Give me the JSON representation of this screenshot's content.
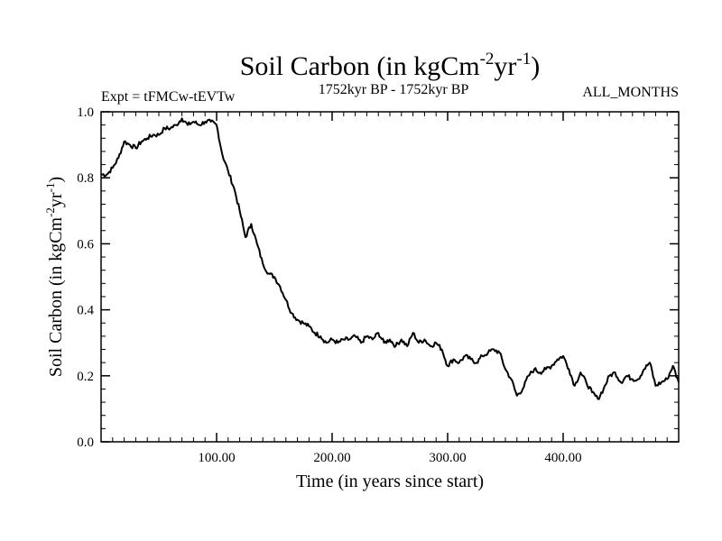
{
  "chart_data": {
    "type": "line",
    "title_main": "Soil Carbon (in kgCm",
    "title_sup1": "-2",
    "title_mid": "yr",
    "title_sup2": "-1",
    "title_end": ")",
    "subtitle_left": "Expt = tFMCw-tEVTw",
    "subtitle_center": "1752kyr BP - 1752kyr BP",
    "subtitle_right": "ALL_MONTHS",
    "xlabel": "Time (in years since start)",
    "ylabel_main": "Soil Carbon (in kgCm",
    "ylabel_sup1": "-2",
    "ylabel_mid": "yr",
    "ylabel_sup2": "-1",
    "ylabel_end": ")",
    "xlim": [
      0,
      500
    ],
    "ylim": [
      0,
      1.0
    ],
    "x_ticks": [
      {
        "value": 100,
        "label": "100.00"
      },
      {
        "value": 200,
        "label": "200.00"
      },
      {
        "value": 300,
        "label": "300.00"
      },
      {
        "value": 400,
        "label": "400.00"
      }
    ],
    "y_ticks": [
      {
        "value": 0.0,
        "label": "0.0"
      },
      {
        "value": 0.2,
        "label": "0.2"
      },
      {
        "value": 0.4,
        "label": "0.4"
      },
      {
        "value": 0.6,
        "label": "0.6"
      },
      {
        "value": 0.8,
        "label": "0.8"
      },
      {
        "value": 1.0,
        "label": "1.0"
      }
    ],
    "series": [
      {
        "name": "Soil Carbon",
        "color": "#000000",
        "x": [
          0,
          5,
          10,
          15,
          20,
          25,
          30,
          35,
          40,
          45,
          50,
          55,
          60,
          65,
          70,
          75,
          80,
          85,
          90,
          95,
          100,
          105,
          110,
          115,
          120,
          125,
          130,
          135,
          140,
          145,
          150,
          155,
          160,
          165,
          170,
          175,
          180,
          185,
          190,
          195,
          200,
          205,
          210,
          215,
          220,
          225,
          230,
          235,
          240,
          245,
          250,
          255,
          260,
          265,
          270,
          275,
          280,
          285,
          290,
          295,
          300,
          305,
          310,
          315,
          320,
          325,
          330,
          335,
          340,
          345,
          350,
          355,
          360,
          365,
          370,
          375,
          380,
          385,
          390,
          395,
          400,
          405,
          410,
          415,
          420,
          425,
          430,
          435,
          440,
          445,
          450,
          455,
          460,
          465,
          470,
          475,
          480,
          485,
          490,
          495,
          500
        ],
        "y": [
          0.81,
          0.81,
          0.83,
          0.86,
          0.91,
          0.9,
          0.89,
          0.91,
          0.92,
          0.93,
          0.93,
          0.95,
          0.95,
          0.96,
          0.98,
          0.96,
          0.97,
          0.96,
          0.97,
          0.97,
          0.96,
          0.87,
          0.82,
          0.77,
          0.7,
          0.62,
          0.66,
          0.6,
          0.54,
          0.51,
          0.5,
          0.47,
          0.43,
          0.39,
          0.37,
          0.36,
          0.35,
          0.33,
          0.32,
          0.3,
          0.31,
          0.3,
          0.31,
          0.31,
          0.32,
          0.3,
          0.32,
          0.31,
          0.33,
          0.3,
          0.31,
          0.29,
          0.31,
          0.29,
          0.33,
          0.3,
          0.31,
          0.29,
          0.3,
          0.28,
          0.23,
          0.25,
          0.24,
          0.26,
          0.25,
          0.24,
          0.26,
          0.27,
          0.28,
          0.27,
          0.22,
          0.19,
          0.14,
          0.16,
          0.2,
          0.22,
          0.21,
          0.22,
          0.23,
          0.25,
          0.26,
          0.22,
          0.17,
          0.21,
          0.18,
          0.15,
          0.13,
          0.16,
          0.2,
          0.21,
          0.18,
          0.2,
          0.19,
          0.19,
          0.22,
          0.24,
          0.17,
          0.18,
          0.19,
          0.23,
          0.18
        ]
      }
    ]
  }
}
